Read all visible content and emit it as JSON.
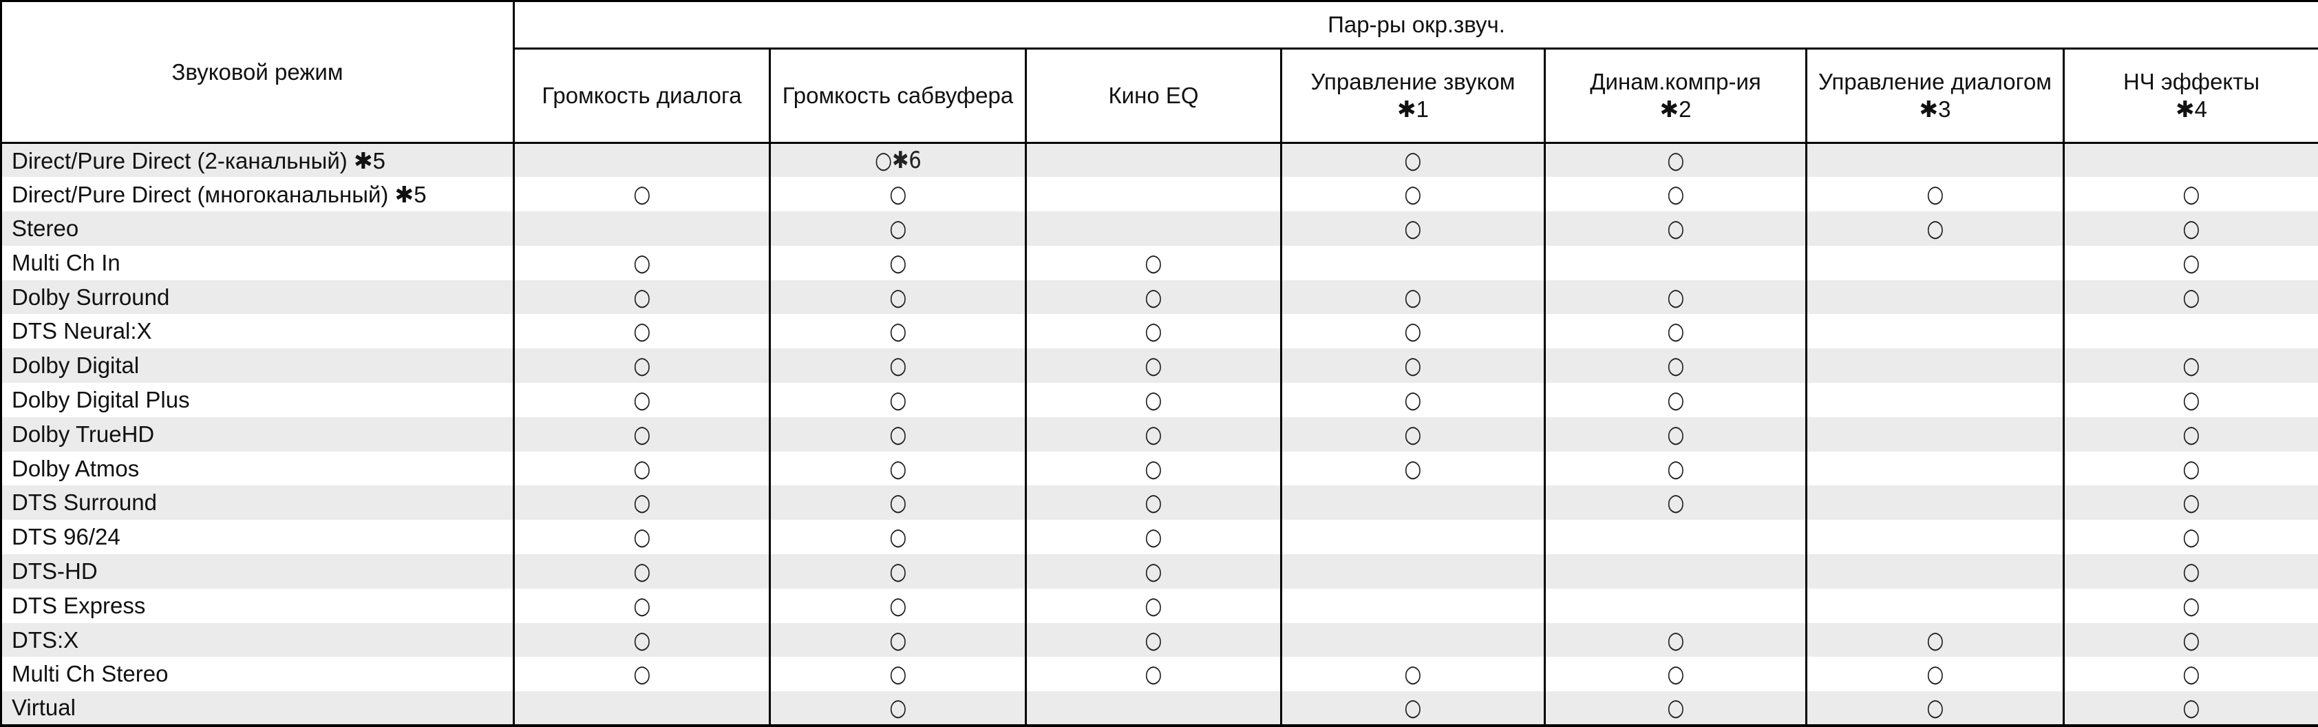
{
  "header": {
    "mode_label": "Звуковой режим",
    "group_label": "Пар-ры окр.звуч.",
    "columns": [
      {
        "label": "Громкость диалога",
        "note": ""
      },
      {
        "label": "Громкость сабвуфера",
        "note": ""
      },
      {
        "label": "Кино EQ",
        "note": ""
      },
      {
        "label": "Управление звуком",
        "note": "✱1"
      },
      {
        "label": "Динам.компр-ия",
        "note": "✱2"
      },
      {
        "label": "Управление диалогом",
        "note": "✱3"
      },
      {
        "label": "НЧ эффекты",
        "note": "✱4"
      }
    ]
  },
  "rows": [
    {
      "mode": "Direct/Pure Direct (2-канальный) ✱5",
      "cells": [
        "",
        "○✱6",
        "",
        "○",
        "○",
        "",
        ""
      ]
    },
    {
      "mode": "Direct/Pure Direct (многоканальный) ✱5",
      "cells": [
        "○",
        "○",
        "",
        "○",
        "○",
        "○",
        "○"
      ]
    },
    {
      "mode": "Stereo",
      "cells": [
        "",
        "○",
        "",
        "○",
        "○",
        "○",
        "○"
      ]
    },
    {
      "mode": "Multi Ch In",
      "cells": [
        "○",
        "○",
        "○",
        "",
        "",
        "",
        "○"
      ]
    },
    {
      "mode": "Dolby Surround",
      "cells": [
        "○",
        "○",
        "○",
        "○",
        "○",
        "",
        "○"
      ]
    },
    {
      "mode": "DTS Neural:X",
      "cells": [
        "○",
        "○",
        "○",
        "○",
        "○",
        "",
        ""
      ]
    },
    {
      "mode": "Dolby Digital",
      "cells": [
        "○",
        "○",
        "○",
        "○",
        "○",
        "",
        "○"
      ]
    },
    {
      "mode": "Dolby Digital Plus",
      "cells": [
        "○",
        "○",
        "○",
        "○",
        "○",
        "",
        "○"
      ]
    },
    {
      "mode": "Dolby TrueHD",
      "cells": [
        "○",
        "○",
        "○",
        "○",
        "○",
        "",
        "○"
      ]
    },
    {
      "mode": "Dolby Atmos",
      "cells": [
        "○",
        "○",
        "○",
        "○",
        "○",
        "",
        "○"
      ]
    },
    {
      "mode": "DTS Surround",
      "cells": [
        "○",
        "○",
        "○",
        "",
        "○",
        "",
        "○"
      ]
    },
    {
      "mode": "DTS 96/24",
      "cells": [
        "○",
        "○",
        "○",
        "",
        "",
        "",
        "○"
      ]
    },
    {
      "mode": "DTS-HD",
      "cells": [
        "○",
        "○",
        "○",
        "",
        "",
        "",
        "○"
      ]
    },
    {
      "mode": "DTS Express",
      "cells": [
        "○",
        "○",
        "○",
        "",
        "",
        "",
        "○"
      ]
    },
    {
      "mode": "DTS:X",
      "cells": [
        "○",
        "○",
        "○",
        "",
        "○",
        "○",
        "○"
      ]
    },
    {
      "mode": "Multi Ch Stereo",
      "cells": [
        "○",
        "○",
        "○",
        "○",
        "○",
        "○",
        "○"
      ]
    },
    {
      "mode": "Virtual",
      "cells": [
        "",
        "○",
        "",
        "○",
        "○",
        "○",
        "○"
      ]
    }
  ],
  "colors": {
    "shade": "#ebebeb",
    "border": "#000000"
  }
}
